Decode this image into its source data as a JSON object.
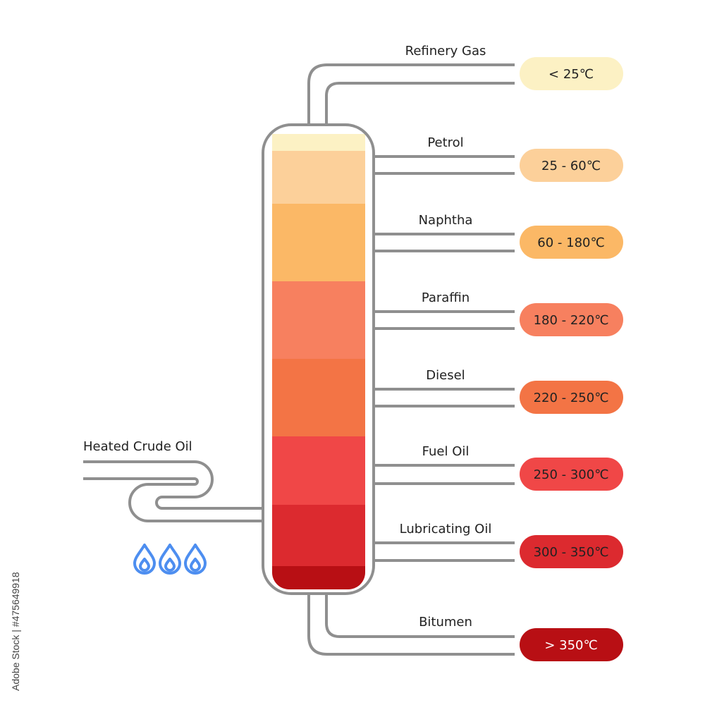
{
  "feed": {
    "label": "Heated Crude Oil"
  },
  "flame": {
    "icon": "flame-icon",
    "color": "#4d8ef0",
    "count": 3
  },
  "pipe_color": "#8f8f8f",
  "fractions": [
    {
      "name": "Refinery Gas",
      "temp": "< 25℃",
      "color": "#fcf1c4",
      "text_color": "#222222"
    },
    {
      "name": "Petrol",
      "temp": "25 - 60℃",
      "color": "#fcd09a",
      "text_color": "#222222"
    },
    {
      "name": "Naphtha",
      "temp": "60 - 180℃",
      "color": "#fbb866",
      "text_color": "#222222"
    },
    {
      "name": "Paraffin",
      "temp": "180 - 220℃",
      "color": "#f7805f",
      "text_color": "#222222"
    },
    {
      "name": "Diesel",
      "temp": "220 - 250℃",
      "color": "#f37445",
      "text_color": "#222222"
    },
    {
      "name": "Fuel Oil",
      "temp": "250 - 300℃",
      "color": "#f04747",
      "text_color": "#222222"
    },
    {
      "name": "Lubricating Oil",
      "temp": "300 - 350℃",
      "color": "#dc2a2f",
      "text_color": "#222222"
    },
    {
      "name": "Bitumen",
      "temp": "> 350℃",
      "color": "#b80f14",
      "text_color": "#ffffff"
    }
  ],
  "column_layers": [
    {
      "fraction": "Refinery Gas",
      "color": "#fcf1c4"
    },
    {
      "fraction": "Petrol",
      "color": "#fcd09a"
    },
    {
      "fraction": "Naphtha",
      "color": "#fbb866"
    },
    {
      "fraction": "Paraffin",
      "color": "#f7805f"
    },
    {
      "fraction": "Diesel",
      "color": "#f37445"
    },
    {
      "fraction": "Fuel Oil",
      "color": "#f04747"
    },
    {
      "fraction": "Lubricating Oil",
      "color": "#dc2a2f"
    },
    {
      "fraction": "Bitumen",
      "color": "#b80f14"
    }
  ],
  "watermark": {
    "text": "Adobe Stock | #475649918"
  }
}
